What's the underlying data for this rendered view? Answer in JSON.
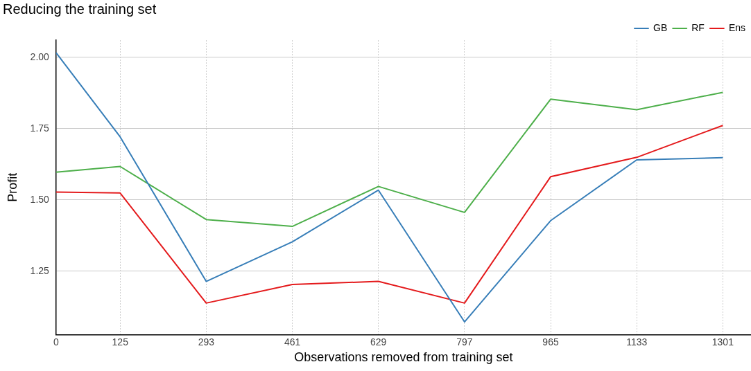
{
  "chart_data": {
    "type": "line",
    "title": "Reducing the training set",
    "xlabel": "Observations removed from training set",
    "ylabel": "Profit",
    "x": [
      0,
      125,
      293,
      461,
      629,
      797,
      965,
      1133,
      1301
    ],
    "series": [
      {
        "name": "GB",
        "color": "#377eb8",
        "values": [
          2.016,
          1.721,
          1.214,
          1.353,
          1.534,
          1.072,
          1.427,
          1.64,
          1.648
        ]
      },
      {
        "name": "RF",
        "color": "#4daf4a",
        "values": [
          1.597,
          1.617,
          1.431,
          1.407,
          1.547,
          1.456,
          1.853,
          1.816,
          1.877
        ]
      },
      {
        "name": "Ens",
        "color": "#e41a1c",
        "values": [
          1.527,
          1.524,
          1.138,
          1.203,
          1.214,
          1.138,
          1.581,
          1.649,
          1.761
        ]
      }
    ],
    "xlim": [
      0,
      1356
    ],
    "xticks": [
      0,
      125,
      293,
      461,
      629,
      797,
      965,
      1133,
      1301
    ],
    "ylim": [
      1.027,
      2.06
    ],
    "yticks": [
      {
        "value": 1.25,
        "label": "1.25"
      },
      {
        "value": 1.5,
        "label": "1.50"
      },
      {
        "value": 1.75,
        "label": "1.75"
      },
      {
        "value": 2,
        "label": "2.00"
      }
    ],
    "grid": true,
    "legend": "top right",
    "marker": "none",
    "line_style": "solid"
  }
}
